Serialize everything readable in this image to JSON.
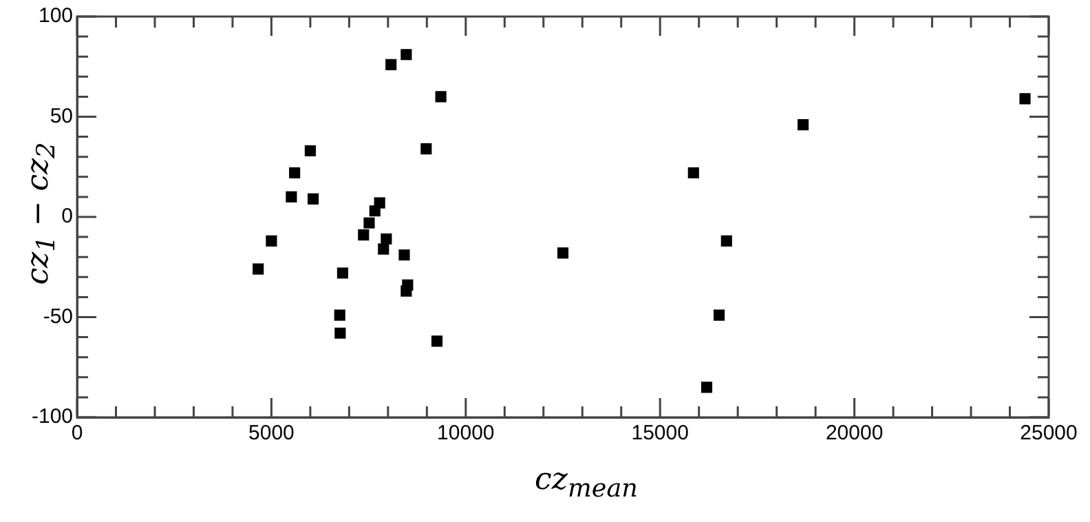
{
  "chart_data": {
    "type": "scatter",
    "xlabel": "cz$_{mean}$",
    "ylabel": "cz$_{1}$ − cz$_{2}$",
    "x": [
      8469,
      8077,
      9359,
      6000,
      8982,
      5597,
      5513,
      6074,
      7784,
      7662,
      7515,
      7370,
      7956,
      7883,
      8418,
      5000,
      4659,
      6832,
      8505,
      8469,
      6758,
      6769,
      9260,
      15860,
      12500,
      16200,
      16520,
      16710,
      18680,
      24390
    ],
    "series": [
      {
        "color": "#000000",
        "values": [
          81,
          76,
          60,
          33,
          34,
          22,
          10,
          9,
          7,
          3,
          -3,
          -9,
          -11,
          -16,
          -19,
          -12,
          -26,
          -28,
          -34,
          -37,
          -49,
          -58,
          -62,
          22,
          -18,
          -85,
          -49,
          -12,
          46,
          59
        ]
      }
    ],
    "xlim": [
      0,
      25000
    ],
    "xticks": [
      0,
      {
        "value": 1000,
        "label": null
      },
      {
        "value": 2000,
        "label": null
      },
      {
        "value": 3000,
        "label": null
      },
      {
        "value": 4000,
        "label": null
      },
      5000,
      {
        "value": 6000,
        "label": null
      },
      {
        "value": 7000,
        "label": null
      },
      {
        "value": 8000,
        "label": null
      },
      {
        "value": 9000,
        "label": null
      },
      10000,
      {
        "value": 11000,
        "label": null
      },
      {
        "value": 12000,
        "label": null
      },
      {
        "value": 13000,
        "label": null
      },
      {
        "value": 14000,
        "label": null
      },
      15000,
      {
        "value": 16000,
        "label": null
      },
      {
        "value": 17000,
        "label": null
      },
      {
        "value": 18000,
        "label": null
      },
      {
        "value": 19000,
        "label": null
      },
      20000,
      {
        "value": 21000,
        "label": null
      },
      {
        "value": 22000,
        "label": null
      },
      {
        "value": 23000,
        "label": null
      },
      {
        "value": 24000,
        "label": null
      },
      25000
    ],
    "ylim": [
      -100,
      100
    ],
    "yticks": [
      -100,
      {
        "value": -90,
        "label": null
      },
      {
        "value": -80,
        "label": null
      },
      {
        "value": -70,
        "label": null
      },
      {
        "value": -60,
        "label": null
      },
      -50,
      {
        "value": -40,
        "label": null
      },
      {
        "value": -30,
        "label": null
      },
      {
        "value": -20,
        "label": null
      },
      {
        "value": -10,
        "label": null
      },
      0,
      {
        "value": 10,
        "label": null
      },
      {
        "value": 20,
        "label": null
      },
      {
        "value": 30,
        "label": null
      },
      {
        "value": 40,
        "label": null
      },
      50,
      {
        "value": 60,
        "label": null
      },
      {
        "value": 70,
        "label": null
      },
      {
        "value": 80,
        "label": null
      },
      {
        "value": 90,
        "label": null
      },
      100
    ],
    "grid": false,
    "legend": false,
    "marker": "square"
  }
}
